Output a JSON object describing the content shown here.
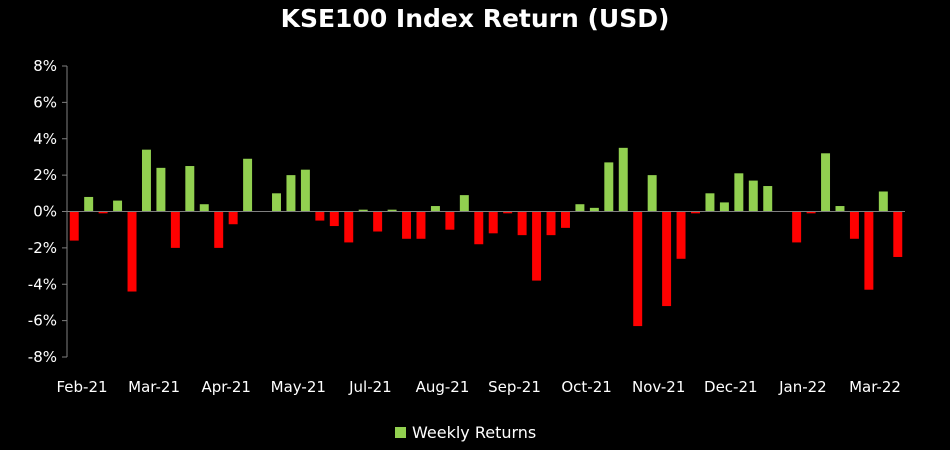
{
  "chart_data": {
    "type": "bar",
    "title": "KSE100 Index Return (USD)",
    "xlabel": "",
    "ylabel": "",
    "ylim": [
      -8,
      8
    ],
    "y_ticks": [
      8,
      6,
      4,
      2,
      0,
      -2,
      -4,
      -6,
      -8
    ],
    "y_tick_format": "%",
    "x_tick_labels": [
      "Feb-21",
      "Mar-21",
      "Apr-21",
      "May-21",
      "Jul-21",
      "Aug-21",
      "Sep-21",
      "Oct-21",
      "Nov-21",
      "Dec-21",
      "Jan-22",
      "Mar-22"
    ],
    "series": [
      {
        "name": "Weekly Returns",
        "values": [
          -1.6,
          0.8,
          -0.1,
          0.6,
          -4.4,
          3.4,
          2.4,
          -2.0,
          2.5,
          0.4,
          -2.0,
          -0.7,
          2.9,
          0.0,
          1.0,
          2.0,
          2.3,
          -0.5,
          -0.8,
          -1.7,
          0.1,
          -1.1,
          0.1,
          -1.5,
          -1.5,
          0.3,
          -1.0,
          0.9,
          -1.8,
          -1.2,
          -0.1,
          -1.3,
          -3.8,
          -1.3,
          -0.9,
          0.4,
          0.2,
          2.7,
          3.5,
          -6.3,
          2.0,
          -5.2,
          -2.6,
          -0.1,
          1.0,
          0.5,
          2.1,
          1.7,
          1.4,
          0.0,
          -1.7,
          -0.1,
          3.2,
          0.3,
          -1.5,
          -4.3,
          1.1,
          -2.5
        ]
      }
    ],
    "colors": {
      "positive": "#92d050",
      "negative": "#ff0000",
      "axis": "#7f7f7f",
      "legend": "#92d050"
    },
    "grid": false,
    "legend_position": "bottom"
  }
}
